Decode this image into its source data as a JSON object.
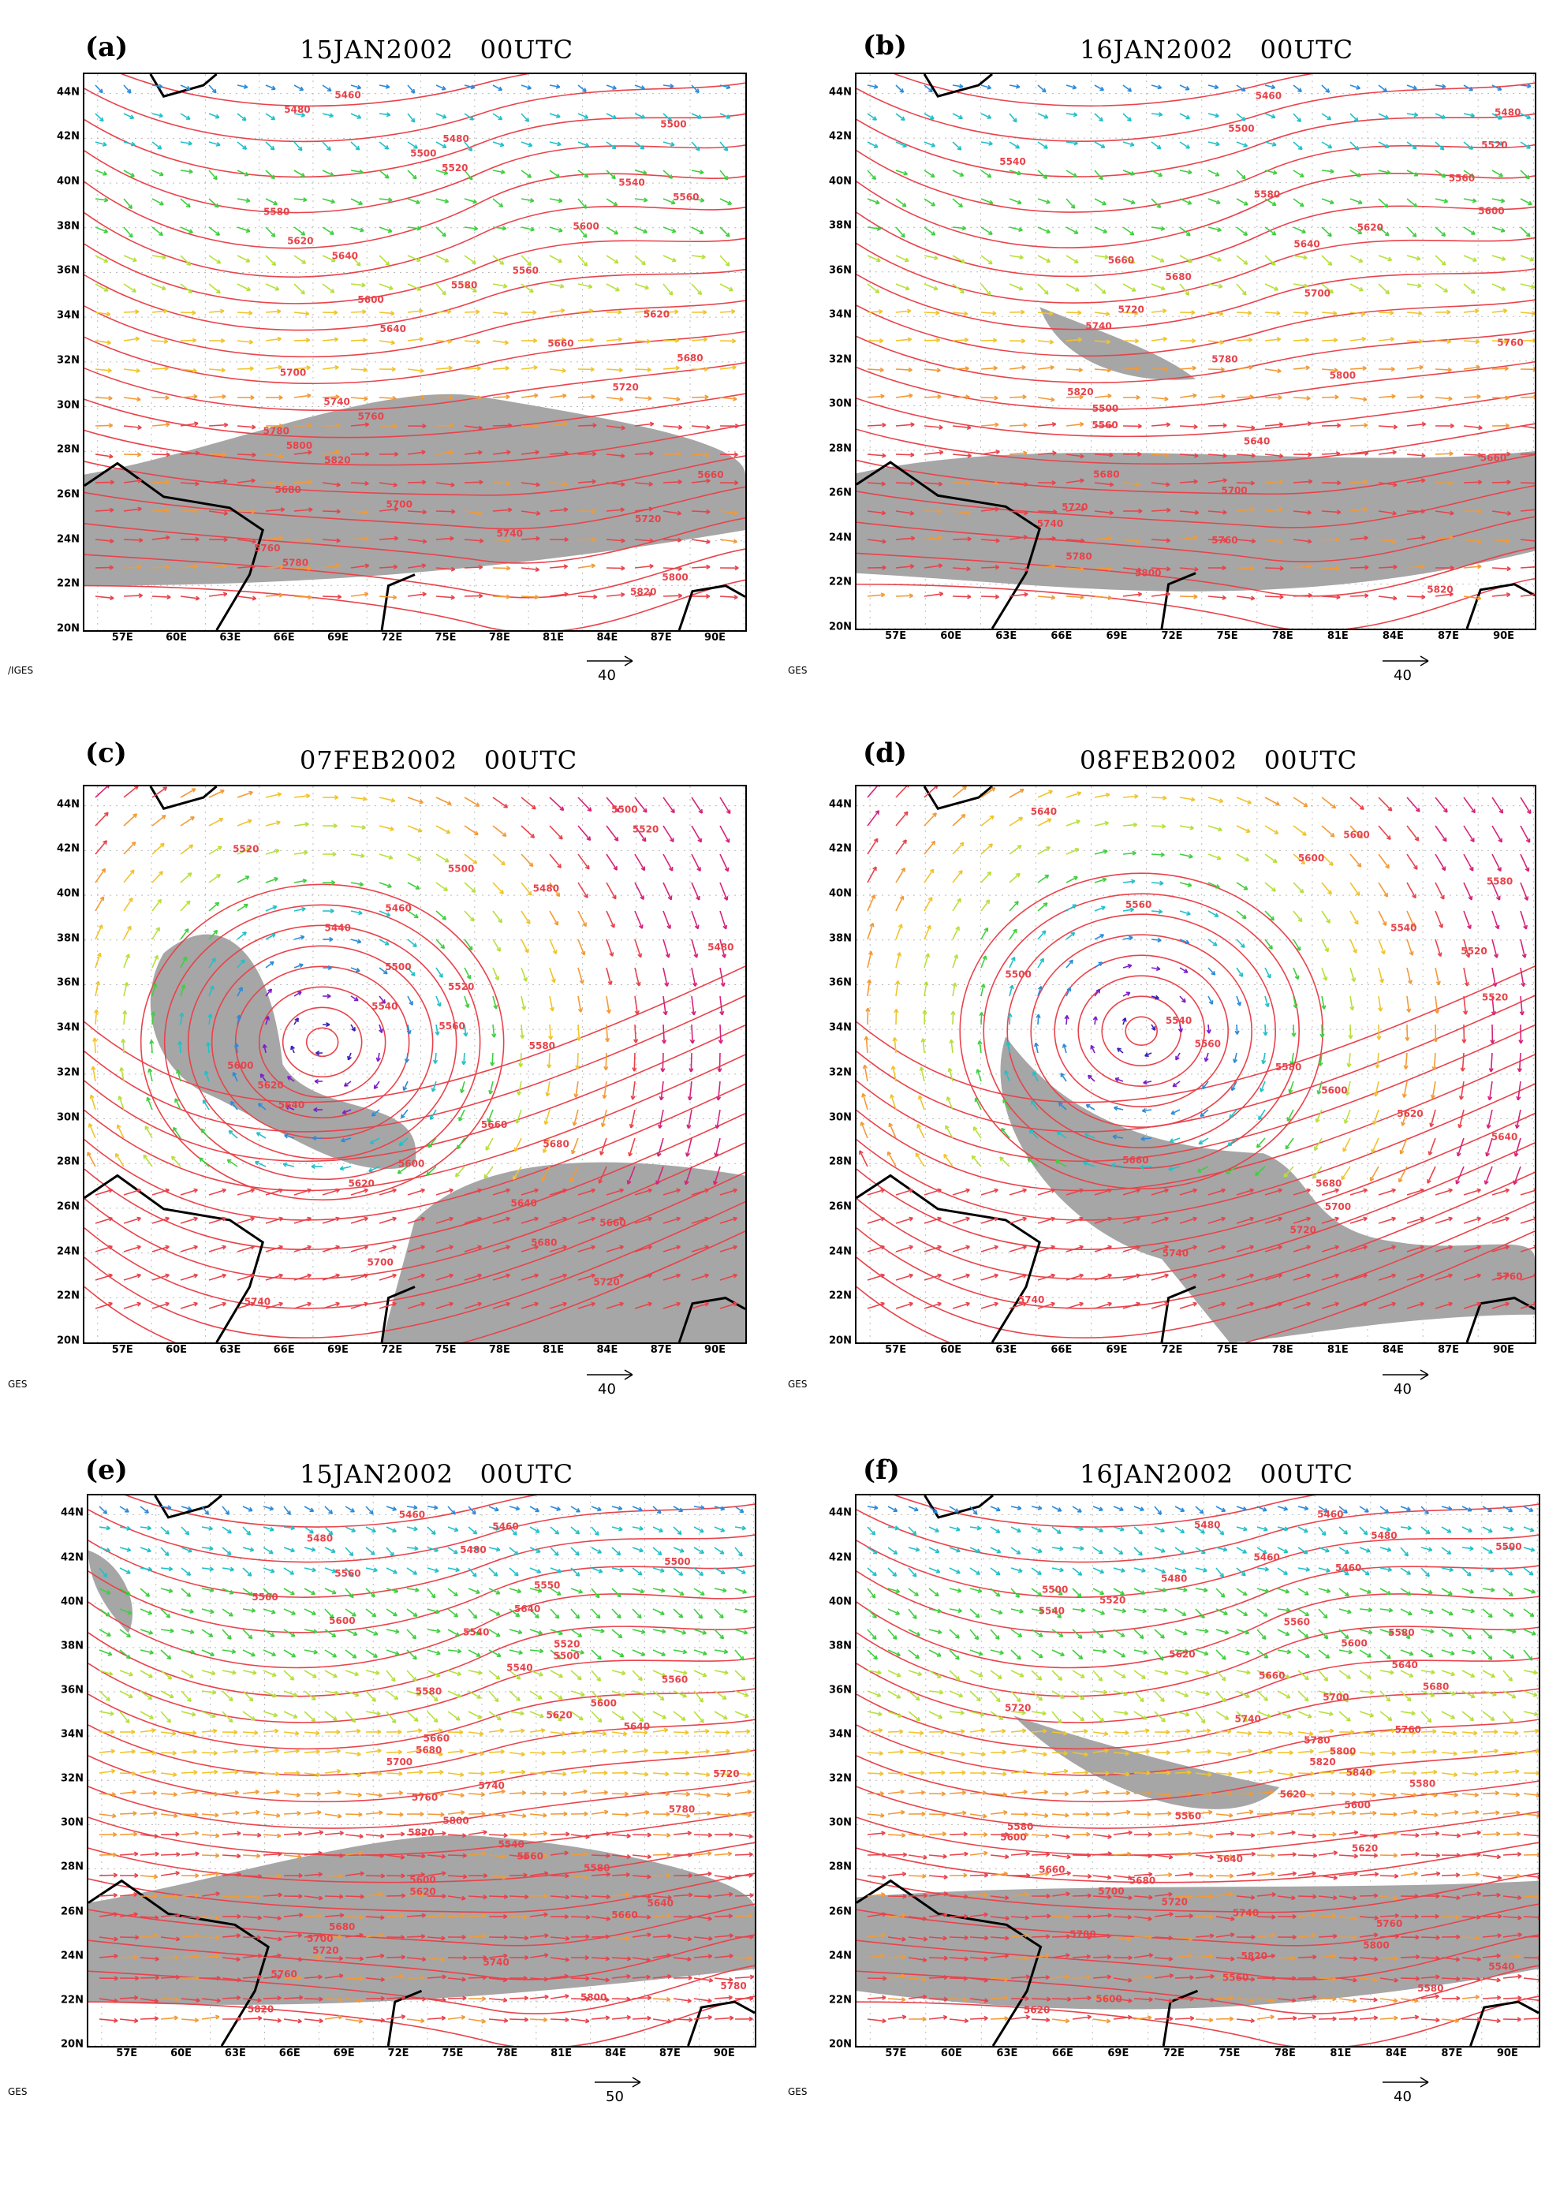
{
  "panels": [
    {
      "letter": "(a)",
      "title": "15JAN2002   00UTC",
      "footer": "/IGES",
      "ref_label": "40"
    },
    {
      "letter": "(b)",
      "title": "16JAN2002   00UTC",
      "footer": "GES",
      "ref_label": "40"
    },
    {
      "letter": "(c)",
      "title": "07FEB2002   00UTC",
      "footer": "GES",
      "ref_label": "40"
    },
    {
      "letter": "(d)",
      "title": "08FEB2002   00UTC",
      "footer": "GES",
      "ref_label": "40"
    },
    {
      "letter": "(e)",
      "title": "15JAN2002   00UTC",
      "footer": "GES",
      "ref_label": "50"
    },
    {
      "letter": "(f)",
      "title": "16JAN2002   00UTC",
      "footer": "GES",
      "ref_label": "40"
    }
  ],
  "lat_ticks": [
    "44N",
    "42N",
    "40N",
    "38N",
    "36N",
    "34N",
    "32N",
    "30N",
    "28N",
    "26N",
    "24N",
    "22N",
    "20N"
  ],
  "lon_ticks": [
    "57E",
    "60E",
    "63E",
    "66E",
    "69E",
    "72E",
    "75E",
    "78E",
    "81E",
    "84E",
    "87E",
    "90E"
  ],
  "contour_labels": {
    "a": [
      "5460",
      "5480",
      "5500",
      "5480",
      "5500",
      "5520",
      "5540",
      "5560",
      "5580",
      "5600",
      "5620",
      "5640",
      "5560",
      "5580",
      "5600",
      "5620",
      "5640",
      "5660",
      "5680",
      "5700",
      "5720",
      "5740",
      "5760",
      "5780",
      "5800",
      "5820",
      "5660",
      "5680",
      "5700",
      "5720",
      "5740",
      "5760",
      "5780",
      "5800",
      "5820"
    ],
    "b": [
      "5460",
      "5480",
      "5500",
      "5520",
      "5540",
      "5560",
      "5580",
      "5600",
      "5620",
      "5640",
      "5660",
      "5680",
      "5700",
      "5720",
      "5740",
      "5760",
      "5780",
      "5800",
      "5820",
      "5500",
      "5560",
      "5640",
      "5660",
      "5680",
      "5700",
      "5720",
      "5740",
      "5760",
      "5780",
      "5800",
      "5820"
    ],
    "c": [
      "5500",
      "5520",
      "5520",
      "5500",
      "5480",
      "5460",
      "5440",
      "5480",
      "5500",
      "5520",
      "5540",
      "5560",
      "5580",
      "5600",
      "5620",
      "5640",
      "5660",
      "5680",
      "5600",
      "5620",
      "5640",
      "5660",
      "5680",
      "5700",
      "5720",
      "5740"
    ],
    "d": [
      "5640",
      "5600",
      "5600",
      "5580",
      "5560",
      "5540",
      "5520",
      "5500",
      "5520",
      "5540",
      "5560",
      "5580",
      "5600",
      "5620",
      "5640",
      "5660",
      "5680",
      "5700",
      "5720",
      "5740",
      "5760",
      "5740"
    ],
    "e": [
      "5460",
      "5460",
      "5480",
      "5480",
      "5500",
      "5560",
      "5550",
      "5560",
      "5640",
      "5600",
      "5540",
      "5520",
      "5500",
      "5540",
      "5560",
      "5580",
      "5600",
      "5620",
      "5640",
      "5660",
      "5680",
      "5700",
      "5720",
      "5740",
      "5760",
      "5780",
      "5800",
      "5820",
      "5540",
      "5560",
      "5580",
      "5600",
      "5620",
      "5640",
      "5660",
      "5680",
      "5700",
      "5720",
      "5740",
      "5760",
      "5780",
      "5800",
      "5820"
    ],
    "f": [
      "5460",
      "5480",
      "5480",
      "5500",
      "5460",
      "5460",
      "5480",
      "5500",
      "5520",
      "5540",
      "5560",
      "5580",
      "5600",
      "5620",
      "5640",
      "5660",
      "5680",
      "5700",
      "5720",
      "5740",
      "5760",
      "5780",
      "5800",
      "5820",
      "5840",
      "5580",
      "5620",
      "5600",
      "5560",
      "5580",
      "5600",
      "5620",
      "5640",
      "5660",
      "5680",
      "5700",
      "5720",
      "5740",
      "5760",
      "5780",
      "5800",
      "5820",
      "5540",
      "5560",
      "5580",
      "5600",
      "5620"
    ]
  },
  "colors": {
    "contour": "#e8434b",
    "contour_label": "#e8434b",
    "shade": "#a6a6a6",
    "coast": "#000000",
    "vector_palette": [
      "#3b1fb8",
      "#7a1fc9",
      "#2c8bd9",
      "#22c0c9",
      "#3fcf3f",
      "#b6e03a",
      "#f0c42c",
      "#f39a35",
      "#e8434b",
      "#d6237a"
    ]
  }
}
